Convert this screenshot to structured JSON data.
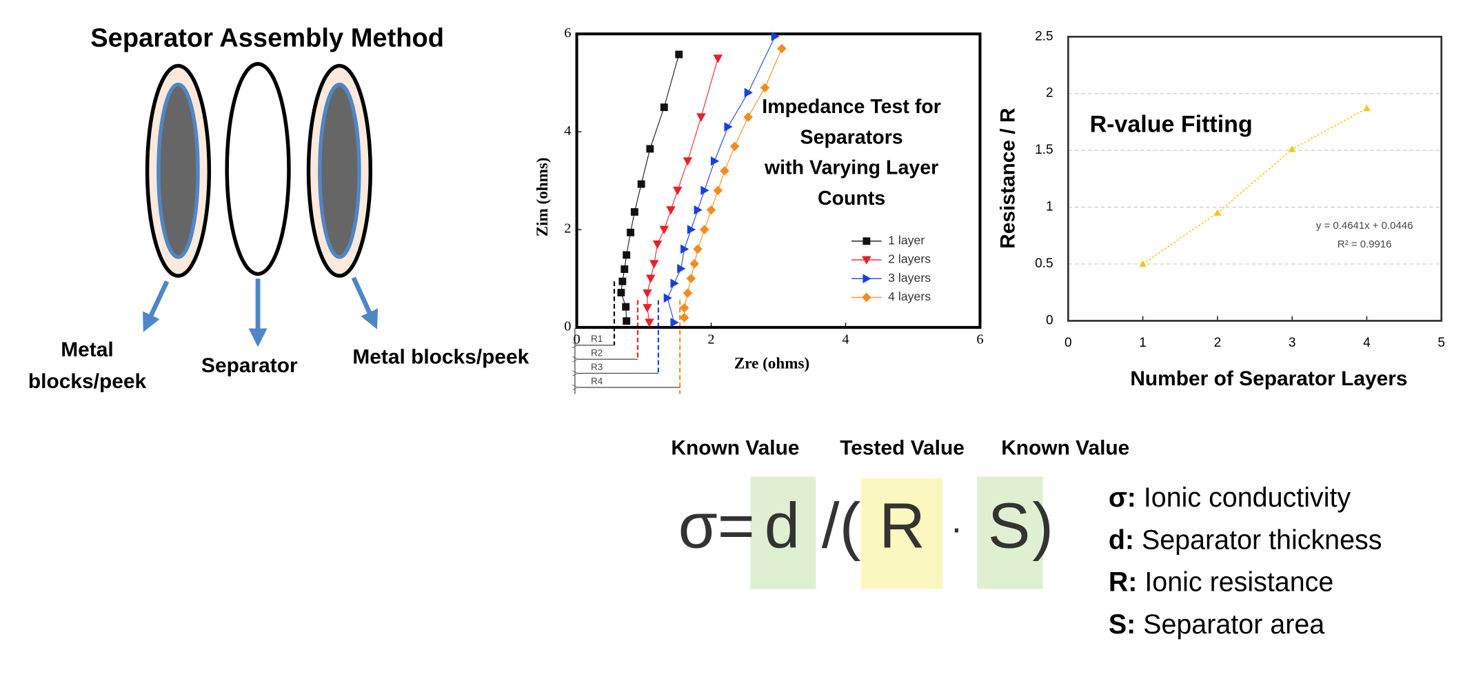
{
  "assembly": {
    "title": "Separator Assembly Method",
    "left_label": [
      "Metal",
      "blocks/peek"
    ],
    "middle_label": "Separator",
    "right_label": "Metal blocks/peek"
  },
  "chart_data": [
    {
      "type": "scatter",
      "annotation": [
        "Impedance Test for",
        "Separators",
        "with Varying Layer",
        "Counts"
      ],
      "xlabel": "Zre (ohms)",
      "ylabel": "Zim (ohms)",
      "xlim": [
        0,
        6
      ],
      "ylim": [
        0,
        6
      ],
      "xticks": [
        0,
        2,
        4,
        6
      ],
      "yticks": [
        0,
        2,
        4,
        6
      ],
      "r_labels": [
        "R1",
        "R2",
        "R3",
        "R4"
      ],
      "series": [
        {
          "name": "1 layer",
          "color": "#111111",
          "marker": "square",
          "x": [
            0.74,
            0.73,
            0.66,
            0.68,
            0.71,
            0.74,
            0.8,
            0.86,
            0.96,
            1.09,
            1.3,
            1.52
          ],
          "values": [
            0.13,
            0.42,
            0.71,
            0.94,
            1.19,
            1.48,
            1.94,
            2.36,
            2.93,
            3.65,
            4.5,
            5.58
          ]
        },
        {
          "name": "2 layers",
          "color": "#e8202a",
          "marker": "triangle-down",
          "x": [
            1.08,
            1.05,
            1.05,
            1.1,
            1.15,
            1.2,
            1.3,
            1.4,
            1.5,
            1.65,
            1.85,
            2.1
          ],
          "values": [
            0.1,
            0.4,
            0.7,
            1.0,
            1.3,
            1.7,
            2.0,
            2.4,
            2.8,
            3.4,
            4.3,
            5.5
          ]
        },
        {
          "name": "3 layers",
          "color": "#1a3ee0",
          "marker": "triangle-right",
          "x": [
            1.45,
            1.35,
            1.45,
            1.55,
            1.6,
            1.7,
            1.8,
            1.9,
            2.05,
            2.25,
            2.55,
            2.95
          ],
          "values": [
            0.1,
            0.6,
            0.9,
            1.2,
            1.6,
            2.0,
            2.4,
            2.8,
            3.4,
            4.1,
            4.8,
            5.95
          ]
        },
        {
          "name": "4 layers",
          "color": "#f58a1f",
          "marker": "diamond",
          "x": [
            1.6,
            1.6,
            1.65,
            1.7,
            1.75,
            1.8,
            1.9,
            2.0,
            2.1,
            2.2,
            2.35,
            2.55,
            2.8,
            3.05
          ],
          "values": [
            0.2,
            0.4,
            0.7,
            1.0,
            1.3,
            1.6,
            2.0,
            2.4,
            2.8,
            3.2,
            3.7,
            4.3,
            4.9,
            5.7
          ]
        }
      ]
    },
    {
      "type": "line",
      "title": "R-value Fitting",
      "xlabel": "Number of Separator Layers",
      "ylabel": "Resistance / R",
      "xlim": [
        0,
        5
      ],
      "ylim": [
        0,
        2.5
      ],
      "xticks": [
        0,
        1,
        2,
        3,
        4,
        5
      ],
      "yticks": [
        0,
        0.5,
        1,
        1.5,
        2,
        2.5
      ],
      "grid": true,
      "annotation": [
        "y = 0.4641x + 0.0446",
        "R² = 0.9916"
      ],
      "series": [
        {
          "color": "#f5c518",
          "x": [
            1,
            2,
            3,
            4
          ],
          "values": [
            0.5,
            0.95,
            1.51,
            1.87
          ]
        }
      ]
    }
  ],
  "formula": {
    "parts": [
      "σ=",
      "d",
      "/(",
      "R",
      "·",
      "S",
      ")"
    ],
    "labels": [
      "Known Value",
      "Tested Value",
      "Known Value"
    ]
  },
  "definitions": [
    {
      "key": "σ:",
      "text": "Ionic conductivity"
    },
    {
      "key": "d:",
      "text": "Separator thickness"
    },
    {
      "key": "R:",
      "text": "Ionic resistance"
    },
    {
      "key": "S:",
      "text": "Separator area"
    }
  ]
}
